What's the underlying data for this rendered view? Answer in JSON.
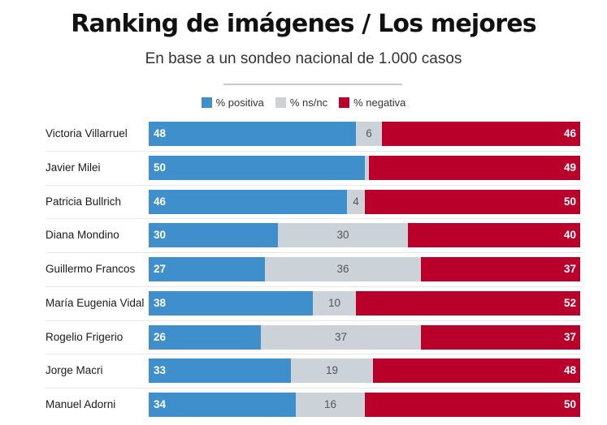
{
  "title": "Ranking de imágenes / Los mejores",
  "subtitle": "En base a un sondeo nacional de 1.000 casos",
  "legend": [
    {
      "label": "% positiva",
      "color": "#3f8fcc"
    },
    {
      "label": "% ns/nc",
      "color": "#cbd3d9"
    },
    {
      "label": "% negativa",
      "color": "#b8002b"
    }
  ],
  "chart_data": {
    "type": "bar",
    "orientation": "horizontal",
    "stacked": true,
    "categories": [
      "Victoria Villarruel",
      "Javier Milei",
      "Patricia Bullrich",
      "Diana Mondino",
      "Guillermo Francos",
      "María Eugenia Vidal",
      "Rogelio Frigerio",
      "Jorge Macri",
      "Manuel Adorni"
    ],
    "series": [
      {
        "name": "% positiva",
        "color": "#3f8fcc",
        "values": [
          48,
          50,
          46,
          30,
          27,
          38,
          26,
          33,
          34
        ]
      },
      {
        "name": "% ns/nc",
        "color": "#cbd3d9",
        "values": [
          6,
          1,
          4,
          30,
          36,
          10,
          37,
          19,
          16
        ],
        "labels": [
          "6",
          "",
          "4",
          "30",
          "36",
          "10",
          "37",
          "19",
          "16"
        ]
      },
      {
        "name": "% negativa",
        "color": "#b8002b",
        "values": [
          46,
          49,
          50,
          40,
          37,
          52,
          37,
          48,
          50
        ]
      }
    ],
    "xlim": [
      0,
      100
    ],
    "grid": false,
    "legend_position": "top-center"
  }
}
